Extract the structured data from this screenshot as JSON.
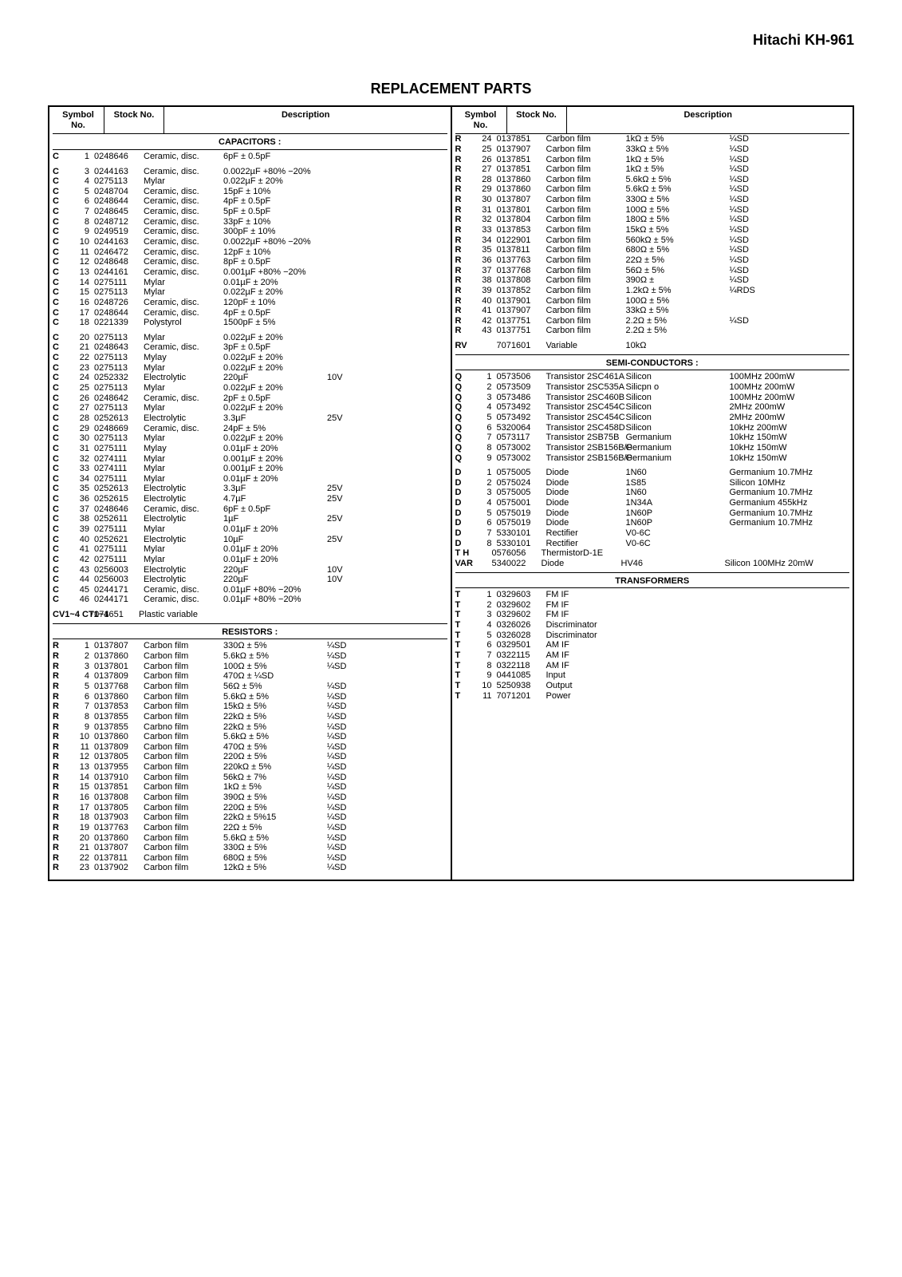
{
  "product": "Hitachi KH-961",
  "title": "REPLACEMENT PARTS",
  "headers": {
    "symbol": "Symbol No.",
    "stock": "Stock No.",
    "desc": "Description"
  },
  "sections": {
    "capacitors": "CAPACITORS :",
    "resistors": "RESISTORS :",
    "semiconductors": "SEMI-CONDUCTORS :",
    "transformers": "TRANSFORMERS"
  },
  "capacitors": [
    {
      "sym": "C",
      "num": "1",
      "stock": "0248646",
      "type": "Ceramic, disc.",
      "val": "6pF ± 0.5pF",
      "volt": ""
    },
    {
      "spacer": true
    },
    {
      "sym": "C",
      "num": "3",
      "stock": "0244163",
      "type": "Ceramic, disc.",
      "val": "0.0022µF +80% −20%",
      "volt": ""
    },
    {
      "sym": "C",
      "num": "4",
      "stock": "0275113",
      "type": "Mylar",
      "val": "0.022µF ± 20%",
      "volt": ""
    },
    {
      "sym": "C",
      "num": "5",
      "stock": "0248704",
      "type": "Ceramic, disc.",
      "val": "15pF ± 10%",
      "volt": ""
    },
    {
      "sym": "C",
      "num": "6",
      "stock": "0248644",
      "type": "Ceramic, disc.",
      "val": "4pF ± 0.5pF",
      "volt": ""
    },
    {
      "sym": "C",
      "num": "7",
      "stock": "0248645",
      "type": "Ceramic, disc.",
      "val": "5pF ± 0.5pF",
      "volt": ""
    },
    {
      "sym": "C",
      "num": "8",
      "stock": "0248712",
      "type": "Ceramic, disc.",
      "val": "33pF ± 10%",
      "volt": ""
    },
    {
      "sym": "C",
      "num": "9",
      "stock": "0249519",
      "type": "Ceramic, disc.",
      "val": "300pF ± 10%",
      "volt": ""
    },
    {
      "sym": "C",
      "num": "10",
      "stock": "0244163",
      "type": "Ceramic, disc.",
      "val": "0.0022µF +80% −20%",
      "volt": ""
    },
    {
      "sym": "C",
      "num": "11",
      "stock": "0246472",
      "type": "Ceramic, disc.",
      "val": "12pF ± 10%",
      "volt": ""
    },
    {
      "sym": "C",
      "num": "12",
      "stock": "0248648",
      "type": "Ceramic, disc.",
      "val": "8pF ± 0.5pF",
      "volt": ""
    },
    {
      "sym": "C",
      "num": "13",
      "stock": "0244161",
      "type": "Ceramic, disc.",
      "val": "0.001µF +80% −20%",
      "volt": ""
    },
    {
      "sym": "C",
      "num": "14",
      "stock": "0275111",
      "type": "Mylar",
      "val": "0.01µF ± 20%",
      "volt": ""
    },
    {
      "sym": "C",
      "num": "15",
      "stock": "0275113",
      "type": "Mylar",
      "val": "0.022µF ± 20%",
      "volt": ""
    },
    {
      "sym": "C",
      "num": "16",
      "stock": "0248726",
      "type": "Ceramic, disc.",
      "val": "120pF ± 10%",
      "volt": ""
    },
    {
      "sym": "C",
      "num": "17",
      "stock": "0248644",
      "type": "Ceramic, disc.",
      "val": "4pF ± 0.5pF",
      "volt": ""
    },
    {
      "sym": "C",
      "num": "18",
      "stock": "0221339",
      "type": "Polystyrol",
      "val": "1500pF ± 5%",
      "volt": ""
    },
    {
      "spacer": true
    },
    {
      "sym": "C",
      "num": "20",
      "stock": "0275113",
      "type": "Mylar",
      "val": "0.022µF ± 20%",
      "volt": ""
    },
    {
      "sym": "C",
      "num": "21",
      "stock": "0248643",
      "type": "Ceramic, disc.",
      "val": "3pF ± 0.5pF",
      "volt": ""
    },
    {
      "sym": "C",
      "num": "22",
      "stock": "0275113",
      "type": "Mylay",
      "val": "0.022µF ± 20%",
      "volt": ""
    },
    {
      "sym": "C",
      "num": "23",
      "stock": "0275113",
      "type": "Mylar",
      "val": "0.022µF ± 20%",
      "volt": ""
    },
    {
      "sym": "C",
      "num": "24",
      "stock": "0252332",
      "type": "Electrolytic",
      "val": "220µF",
      "volt": "10V"
    },
    {
      "sym": "C",
      "num": "25",
      "stock": "0275113",
      "type": "Mylar",
      "val": "0.022µF ± 20%",
      "volt": ""
    },
    {
      "sym": "C",
      "num": "26",
      "stock": "0248642",
      "type": "Ceramic, disc.",
      "val": "2pF ± 0.5pF",
      "volt": ""
    },
    {
      "sym": "C",
      "num": "27",
      "stock": "0275113",
      "type": "Mylar",
      "val": "0.022µF ± 20%",
      "volt": ""
    },
    {
      "sym": "C",
      "num": "28",
      "stock": "0252613",
      "type": "Electrolytic",
      "val": "3.3µF",
      "volt": "25V"
    },
    {
      "sym": "C",
      "num": "29",
      "stock": "0248669",
      "type": "Ceramic, disc.",
      "val": "24pF ± 5%",
      "volt": ""
    },
    {
      "sym": "C",
      "num": "30",
      "stock": "0275113",
      "type": "Mylar",
      "val": "0.022µF ± 20%",
      "volt": ""
    },
    {
      "sym": "C",
      "num": "31",
      "stock": "0275111",
      "type": "Mylay",
      "val": "0.01µF ± 20%",
      "volt": ""
    },
    {
      "sym": "C",
      "num": "32",
      "stock": "0274111",
      "type": "Mylar",
      "val": "0.001µF ± 20%",
      "volt": ""
    },
    {
      "sym": "C",
      "num": "33",
      "stock": "0274111",
      "type": "Mylar",
      "val": "0.001µF ± 20%",
      "volt": ""
    },
    {
      "sym": "C",
      "num": "34",
      "stock": "0275111",
      "type": "Mylar",
      "val": "0.01µF ± 20%",
      "volt": ""
    },
    {
      "sym": "C",
      "num": "35",
      "stock": "0252613",
      "type": "Electrolytic",
      "val": "3.3µF",
      "volt": "25V"
    },
    {
      "sym": "C",
      "num": "36",
      "stock": "0252615",
      "type": "Electrolytic",
      "val": "4.7µF",
      "volt": "25V"
    },
    {
      "sym": "C",
      "num": "37",
      "stock": "0248646",
      "type": "Ceramic, disc.",
      "val": "6pF ± 0.5pF",
      "volt": ""
    },
    {
      "sym": "C",
      "num": "38",
      "stock": "0252611",
      "type": "Electrolytic",
      "val": "1µF",
      "volt": "25V"
    },
    {
      "sym": "C",
      "num": "39",
      "stock": "0275111",
      "type": "Mylar",
      "val": "0.01µF ± 20%",
      "volt": ""
    },
    {
      "sym": "C",
      "num": "40",
      "stock": "0252621",
      "type": "Electrolytic",
      "val": "10µF",
      "volt": "25V"
    },
    {
      "sym": "C",
      "num": "41",
      "stock": "0275111",
      "type": "Mylar",
      "val": "0.01µF ± 20%",
      "volt": ""
    },
    {
      "sym": "C",
      "num": "42",
      "stock": "0275111",
      "type": "Mylar",
      "val": "0.01µF ± 20%",
      "volt": ""
    },
    {
      "sym": "C",
      "num": "43",
      "stock": "0256003",
      "type": "Electrolytic",
      "val": "220µF",
      "volt": "10V"
    },
    {
      "sym": "C",
      "num": "44",
      "stock": "0256003",
      "type": "Electrolytic",
      "val": "220µF",
      "volt": "10V"
    },
    {
      "sym": "C",
      "num": "45",
      "stock": "0244171",
      "type": "Ceramic, disc.",
      "val": "0.01µF +80% −20%",
      "volt": ""
    },
    {
      "sym": "C",
      "num": "46",
      "stock": "0244171",
      "type": "Ceramic, disc.",
      "val": "0.01µF +80% −20%",
      "volt": ""
    },
    {
      "spacer": true
    },
    {
      "sym": "CV1~4 CT1~4",
      "num": "",
      "stock": "7071651",
      "type": "Plastic variable",
      "val": "",
      "volt": ""
    }
  ],
  "resistors": [
    {
      "sym": "R",
      "num": "1",
      "stock": "0137807",
      "type": "Carbon film",
      "val": "330Ω ± 5%",
      "volt": "¼SD"
    },
    {
      "sym": "R",
      "num": "2",
      "stock": "0137860",
      "type": "Carbon film",
      "val": "5.6kΩ ± 5%",
      "volt": "¼SD"
    },
    {
      "sym": "R",
      "num": "3",
      "stock": "0137801",
      "type": "Carbon film",
      "val": "100Ω ± 5%",
      "volt": "¼SD"
    },
    {
      "sym": "R",
      "num": "4",
      "stock": "0137809",
      "type": "Carbon film",
      "val": "470Ω ± ¼SD",
      "volt": ""
    },
    {
      "sym": "R",
      "num": "5",
      "stock": "0137768",
      "type": "Carbon film",
      "val": "56Ω ± 5%",
      "volt": "¼SD"
    },
    {
      "sym": "R",
      "num": "6",
      "stock": "0137860",
      "type": "Carbon film",
      "val": "5.6kΩ ± 5%",
      "volt": "¼SD"
    },
    {
      "sym": "R",
      "num": "7",
      "stock": "0137853",
      "type": "Carbon film",
      "val": "15kΩ ± 5%",
      "volt": "¼SD"
    },
    {
      "sym": "R",
      "num": "8",
      "stock": "0137855",
      "type": "Carbon film",
      "val": "22kΩ ± 5%",
      "volt": "¼SD"
    },
    {
      "sym": "R",
      "num": "9",
      "stock": "0137855",
      "type": "Carbno film",
      "val": "22kΩ ± 5%",
      "volt": "¼SD"
    },
    {
      "sym": "R",
      "num": "10",
      "stock": "0137860",
      "type": "Carbon film",
      "val": "5.6kΩ ± 5%",
      "volt": "¼SD"
    },
    {
      "sym": "R",
      "num": "11",
      "stock": "0137809",
      "type": "Carbon film",
      "val": "470Ω ± 5%",
      "volt": "¼SD"
    },
    {
      "sym": "R",
      "num": "12",
      "stock": "0137805",
      "type": "Carbon film",
      "val": "220Ω ± 5%",
      "volt": "¼SD"
    },
    {
      "sym": "R",
      "num": "13",
      "stock": "0137955",
      "type": "Carbon film",
      "val": "220kΩ ± 5%",
      "volt": "¼SD"
    },
    {
      "sym": "R",
      "num": "14",
      "stock": "0137910",
      "type": "Carbon film",
      "val": "56kΩ ± 7%",
      "volt": "¼SD"
    },
    {
      "sym": "R",
      "num": "15",
      "stock": "0137851",
      "type": "Carbon film",
      "val": "1kΩ ± 5%",
      "volt": "¼SD"
    },
    {
      "sym": "R",
      "num": "16",
      "stock": "0137808",
      "type": "Carbon film",
      "val": "390Ω ± 5%",
      "volt": "¼SD"
    },
    {
      "sym": "R",
      "num": "17",
      "stock": "0137805",
      "type": "Carbon film",
      "val": "220Ω ± 5%",
      "volt": "¼SD"
    },
    {
      "sym": "R",
      "num": "18",
      "stock": "0137903",
      "type": "Carbon film",
      "val": "22kΩ ± 5%15",
      "volt": "¼SD"
    },
    {
      "sym": "R",
      "num": "19",
      "stock": "0137763",
      "type": "Carbon film",
      "val": "22Ω ± 5%",
      "volt": "¼SD"
    },
    {
      "sym": "R",
      "num": "20",
      "stock": "0137860",
      "type": "Carbon film",
      "val": "5.6kΩ ± 5%",
      "volt": "¼SD"
    },
    {
      "sym": "R",
      "num": "21",
      "stock": "0137807",
      "type": "Carbon film",
      "val": "330Ω ± 5%",
      "volt": "¼SD"
    },
    {
      "sym": "R",
      "num": "22",
      "stock": "0137811",
      "type": "Carbon film",
      "val": "680Ω ± 5%",
      "volt": "¼SD"
    },
    {
      "sym": "R",
      "num": "23",
      "stock": "0137902",
      "type": "Carbon film",
      "val": "12kΩ ± 5%",
      "volt": "¼SD"
    }
  ],
  "resistors2": [
    {
      "sym": "R",
      "num": "24",
      "stock": "0137851",
      "type": "Carbon film",
      "val": "1kΩ ± 5%",
      "volt": "¼SD"
    },
    {
      "sym": "R",
      "num": "25",
      "stock": "0137907",
      "type": "Carbon film",
      "val": "33kΩ ± 5%",
      "volt": "¼SD"
    },
    {
      "sym": "R",
      "num": "26",
      "stock": "0137851",
      "type": "Carbon film",
      "val": "1kΩ ± 5%",
      "volt": "¼SD"
    },
    {
      "sym": "R",
      "num": "27",
      "stock": "0137851",
      "type": "Carbon film",
      "val": "1kΩ ± 5%",
      "volt": "¼SD"
    },
    {
      "sym": "R",
      "num": "28",
      "stock": "0137860",
      "type": "Carbon film",
      "val": "5.6kΩ ± 5%",
      "volt": "¼SD"
    },
    {
      "sym": "R",
      "num": "29",
      "stock": "0137860",
      "type": "Carbon film",
      "val": "5.6kΩ ± 5%",
      "volt": "¼SD"
    },
    {
      "sym": "R",
      "num": "30",
      "stock": "0137807",
      "type": "Carbon film",
      "val": "330Ω ± 5%",
      "volt": "¼SD"
    },
    {
      "sym": "R",
      "num": "31",
      "stock": "0137801",
      "type": "Carbon film",
      "val": "100Ω ± 5%",
      "volt": "¼SD"
    },
    {
      "sym": "R",
      "num": "32",
      "stock": "0137804",
      "type": "Carbon film",
      "val": "180Ω ± 5%",
      "volt": "¼SD"
    },
    {
      "sym": "R",
      "num": "33",
      "stock": "0137853",
      "type": "Carbon film",
      "val": "15kΩ ± 5%",
      "volt": "¼SD"
    },
    {
      "sym": "R",
      "num": "34",
      "stock": "0122901",
      "type": "Carbon film",
      "val": "560kΩ ± 5%",
      "volt": "¼SD"
    },
    {
      "sym": "R",
      "num": "35",
      "stock": "0137811",
      "type": "Carbon film",
      "val": "680Ω ± 5%",
      "volt": "¼SD"
    },
    {
      "sym": "R",
      "num": "36",
      "stock": "0137763",
      "type": "Carbon film",
      "val": "22Ω ± 5%",
      "volt": "¼SD"
    },
    {
      "sym": "R",
      "num": "37",
      "stock": "0137768",
      "type": "Carbon film",
      "val": "56Ω ± 5%",
      "volt": "¼SD"
    },
    {
      "sym": "R",
      "num": "38",
      "stock": "0137808",
      "type": "Carbon film",
      "val": "390Ω ±",
      "volt": "¼SD"
    },
    {
      "sym": "R",
      "num": "39",
      "stock": "0137852",
      "type": "Carbon film",
      "val": "1.2kΩ ± 5%",
      "volt": "¼RDS"
    },
    {
      "sym": "R",
      "num": "40",
      "stock": "0137901",
      "type": "Carbon film",
      "val": "100Ω ± 5%",
      "volt": ""
    },
    {
      "sym": "R",
      "num": "41",
      "stock": "0137907",
      "type": "Carbon film",
      "val": "33kΩ ± 5%",
      "volt": ""
    },
    {
      "sym": "R",
      "num": "42",
      "stock": "0137751",
      "type": "Carbon film",
      "val": "2.2Ω ± 5%",
      "volt": "¼SD"
    },
    {
      "sym": "R",
      "num": "43",
      "stock": "0137751",
      "type": "Carbon film",
      "val": "2.2Ω ± 5%",
      "volt": ""
    },
    {
      "spacer": true
    },
    {
      "sym": "RV",
      "num": "",
      "stock": "7071601",
      "type": "Variable",
      "val": "10kΩ",
      "volt": ""
    }
  ],
  "semiconductors": [
    {
      "sym": "Q",
      "num": "1",
      "stock": "0573506",
      "type": "Transistor 2SC461A",
      "val": "Silicon",
      "volt": "100MHz 200mW"
    },
    {
      "sym": "Q",
      "num": "2",
      "stock": "0573509",
      "type": "Transistor 2SC535A",
      "val": "Silicpn o",
      "volt": "100MHz 200mW"
    },
    {
      "sym": "Q",
      "num": "3",
      "stock": "0573486",
      "type": "Transistor 2SC460B",
      "val": "Silicon",
      "volt": "100MHz 200mW"
    },
    {
      "sym": "Q",
      "num": "4",
      "stock": "0573492",
      "type": "Transistor 2SC454C",
      "val": "Silicon",
      "volt": "2MHz 200mW"
    },
    {
      "sym": "Q",
      "num": "5",
      "stock": "0573492",
      "type": "Transistor 2SC454C",
      "val": "Silicon",
      "volt": "2MHz 200mW"
    },
    {
      "sym": "Q",
      "num": "6",
      "stock": "5320064",
      "type": "Transistor 2SC458D",
      "val": "Silicon",
      "volt": "10kHz 200mW"
    },
    {
      "sym": "Q",
      "num": "7",
      "stock": "0573117",
      "type": "Transistor 2SB75B",
      "val": "Germanium",
      "volt": "10kHz 150mW"
    },
    {
      "sym": "Q",
      "num": "8",
      "stock": "0573002",
      "type": "Transistor 2SB156B/P",
      "val": "Germanium",
      "volt": "10kHz 150mW"
    },
    {
      "sym": "Q",
      "num": "9",
      "stock": "0573002",
      "type": "Transistor 2SB156B/P",
      "val": "Germanium",
      "volt": "10kHz 150mW"
    },
    {
      "spacer": true
    },
    {
      "sym": "D",
      "num": "1",
      "stock": "0575005",
      "type": "Diode",
      "val": "1N60",
      "volt": "Germanium 10.7MHz"
    },
    {
      "sym": "D",
      "num": "2",
      "stock": "0575024",
      "type": "Diode",
      "val": "1S85",
      "volt": "Silicon 10MHz"
    },
    {
      "sym": "D",
      "num": "3",
      "stock": "0575005",
      "type": "Diode",
      "val": "1N60",
      "volt": "Germanium 10.7MHz"
    },
    {
      "sym": "D",
      "num": "4",
      "stock": "0575001",
      "type": "Diode",
      "val": "1N34A",
      "volt": "Germanium 455kHz"
    },
    {
      "sym": "D",
      "num": "5",
      "stock": "0575019",
      "type": "Diode",
      "val": "1N60P",
      "volt": "Germanium 10.7MHz"
    },
    {
      "sym": "D",
      "num": "6",
      "stock": "0575019",
      "type": "Diode",
      "val": "1N60P",
      "volt": "Germanium 10.7MHz"
    },
    {
      "sym": "D",
      "num": "7",
      "stock": "5330101",
      "type": "Rectifier",
      "val": "V0-6C",
      "volt": ""
    },
    {
      "sym": "D",
      "num": "8",
      "stock": "5330101",
      "type": "Rectifier",
      "val": "V0-6C",
      "volt": ""
    },
    {
      "sym": "T H",
      "num": "",
      "stock": "0576056",
      "type": "ThermistorD-1E",
      "val": "",
      "volt": ""
    },
    {
      "sym": "VAR",
      "num": "",
      "stock": "5340022",
      "type": "Diode",
      "val": "HV46",
      "volt": "Silicon 100MHz 20mW"
    }
  ],
  "transformers": [
    {
      "sym": "T",
      "num": "1",
      "stock": "0329603",
      "type": "FM IF",
      "val": "",
      "volt": ""
    },
    {
      "sym": "T",
      "num": "2",
      "stock": "0329602",
      "type": "FM IF",
      "val": "",
      "volt": ""
    },
    {
      "sym": "T",
      "num": "3",
      "stock": "0329602",
      "type": "FM IF",
      "val": "",
      "volt": ""
    },
    {
      "sym": "T",
      "num": "4",
      "stock": "0326026",
      "type": "Discriminator",
      "val": "",
      "volt": ""
    },
    {
      "sym": "T",
      "num": "5",
      "stock": "0326028",
      "type": "Discriminator",
      "val": "",
      "volt": ""
    },
    {
      "sym": "T",
      "num": "6",
      "stock": "0329501",
      "type": "AM IF",
      "val": "",
      "volt": ""
    },
    {
      "sym": "T",
      "num": "7",
      "stock": "0322115",
      "type": "AM IF",
      "val": "",
      "volt": ""
    },
    {
      "sym": "T",
      "num": "8",
      "stock": "0322118",
      "type": "AM IF",
      "val": "",
      "volt": ""
    },
    {
      "sym": "T",
      "num": "9",
      "stock": "0441085",
      "type": "Input",
      "val": "",
      "volt": ""
    },
    {
      "sym": "T",
      "num": "10",
      "stock": "5250938",
      "type": "Output",
      "val": "",
      "volt": ""
    },
    {
      "sym": "T",
      "num": "11",
      "stock": "7071201",
      "type": "Power",
      "val": "",
      "volt": ""
    }
  ]
}
